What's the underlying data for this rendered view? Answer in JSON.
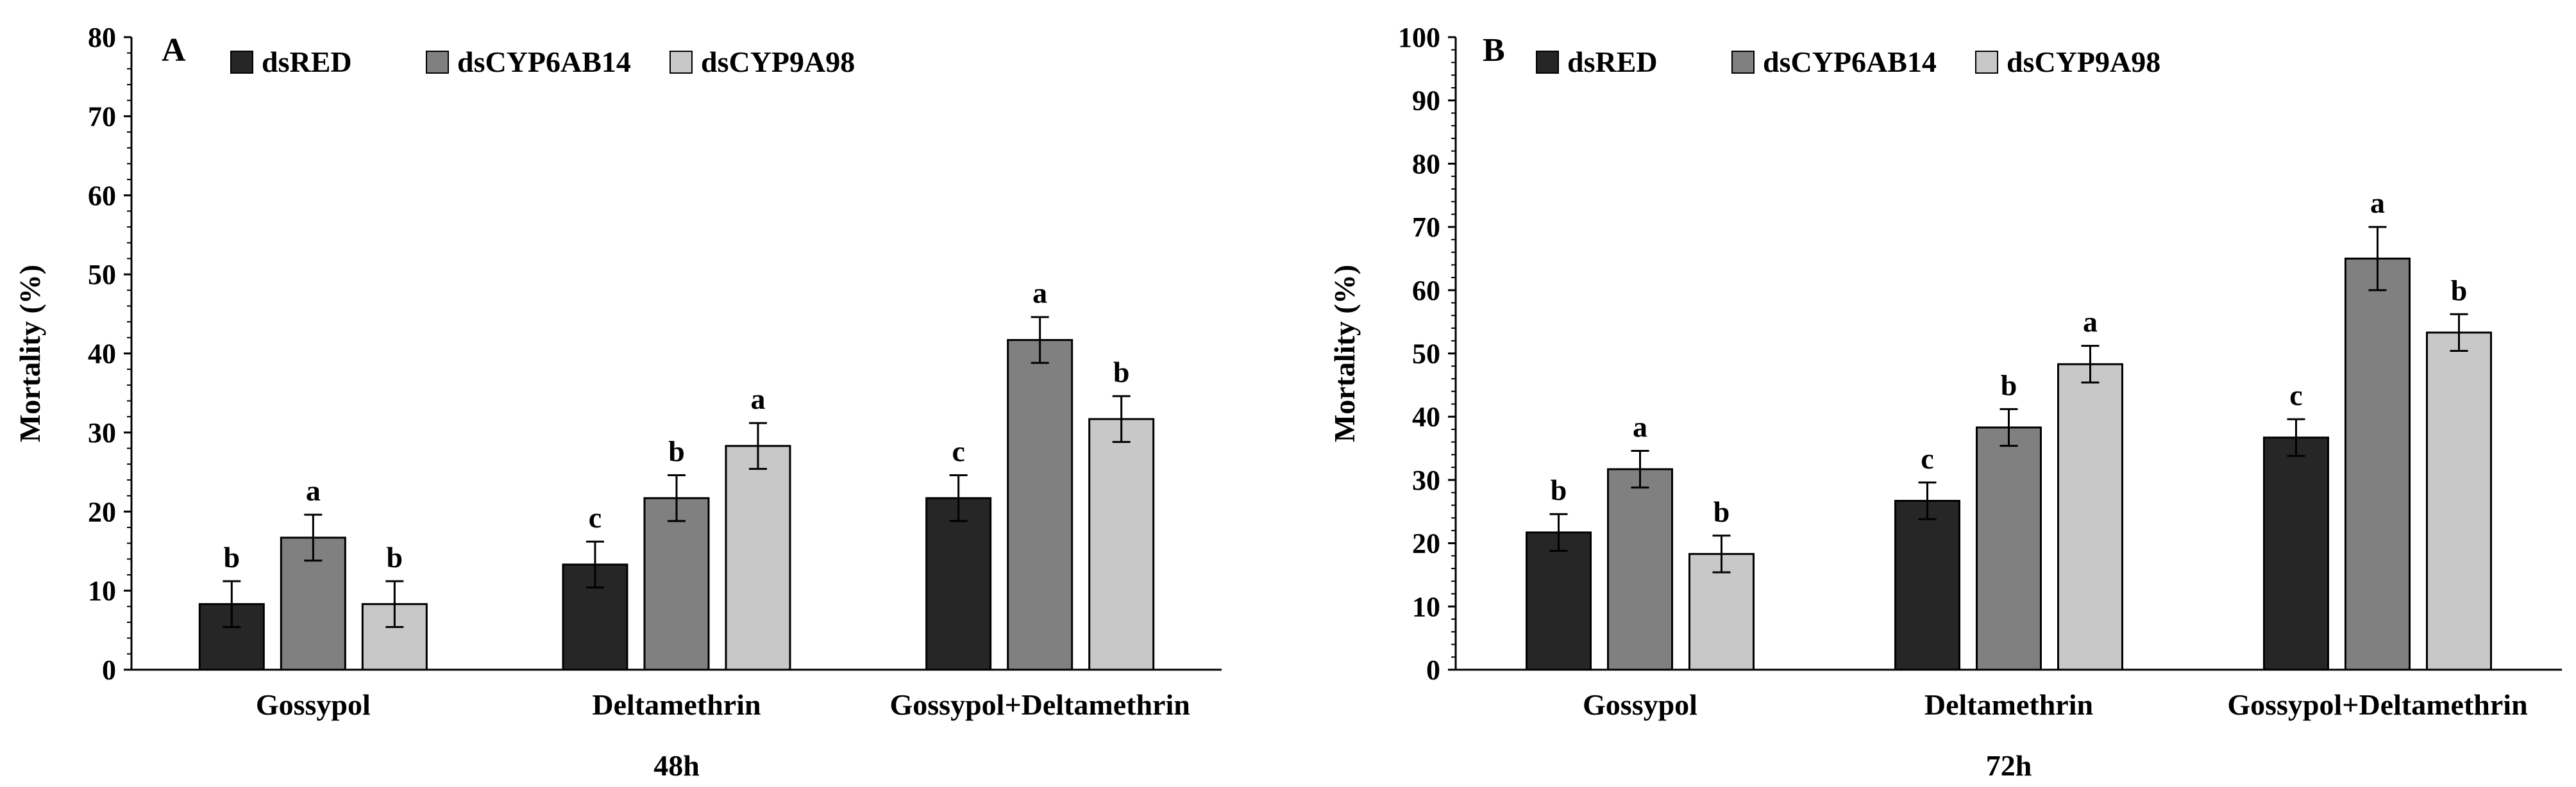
{
  "figure": {
    "series_colors": {
      "dsRED": "#262626",
      "dsCYP6AB14": "#808080",
      "dsCYP9A98": "#c8c8c8"
    }
  },
  "chart_data": [
    {
      "type": "bar",
      "panel_label": "A",
      "title": "",
      "xlabel": "48h",
      "ylabel": "Mortality (%)",
      "ylim": [
        0,
        80
      ],
      "ytick_step": 10,
      "yticks": [
        "0",
        "10",
        "20",
        "30",
        "40",
        "50",
        "60",
        "70",
        "80"
      ],
      "categories": [
        "Gossypol",
        "Deltamethrin",
        "Gossypol+Deltamethrin"
      ],
      "legend_position": "top-left",
      "series": [
        {
          "name": "dsRED",
          "values": [
            8.3,
            13.3,
            21.7
          ],
          "errors": [
            2.9,
            2.9,
            2.9
          ],
          "letters": [
            "b",
            "c",
            "c"
          ]
        },
        {
          "name": "dsCYP6AB14",
          "values": [
            16.7,
            21.7,
            41.7
          ],
          "errors": [
            2.9,
            2.9,
            2.9
          ],
          "letters": [
            "a",
            "b",
            "a"
          ]
        },
        {
          "name": "dsCYP9A98",
          "values": [
            8.3,
            28.3,
            31.7
          ],
          "errors": [
            2.9,
            2.9,
            2.9
          ],
          "letters": [
            "b",
            "a",
            "b"
          ]
        }
      ]
    },
    {
      "type": "bar",
      "panel_label": "B",
      "title": "",
      "xlabel": "72h",
      "ylabel": "Mortality (%)",
      "ylim": [
        0,
        100
      ],
      "ytick_step": 10,
      "yticks": [
        "0",
        "10",
        "20",
        "30",
        "40",
        "50",
        "60",
        "70",
        "80",
        "90",
        "100"
      ],
      "categories": [
        "Gossypol",
        "Deltamethrin",
        "Gossypol+Deltamethrin"
      ],
      "legend_position": "top-left",
      "series": [
        {
          "name": "dsRED",
          "values": [
            21.7,
            26.7,
            36.7
          ],
          "errors": [
            2.9,
            2.9,
            2.9
          ],
          "letters": [
            "b",
            "c",
            "c"
          ]
        },
        {
          "name": "dsCYP6AB14",
          "values": [
            31.7,
            38.3,
            65.0
          ],
          "errors": [
            2.9,
            2.9,
            5.0
          ],
          "letters": [
            "a",
            "b",
            "a"
          ]
        },
        {
          "name": "dsCYP9A98",
          "values": [
            18.3,
            48.3,
            53.3
          ],
          "errors": [
            2.9,
            2.9,
            2.9
          ],
          "letters": [
            "b",
            "a",
            "b"
          ]
        }
      ]
    }
  ]
}
